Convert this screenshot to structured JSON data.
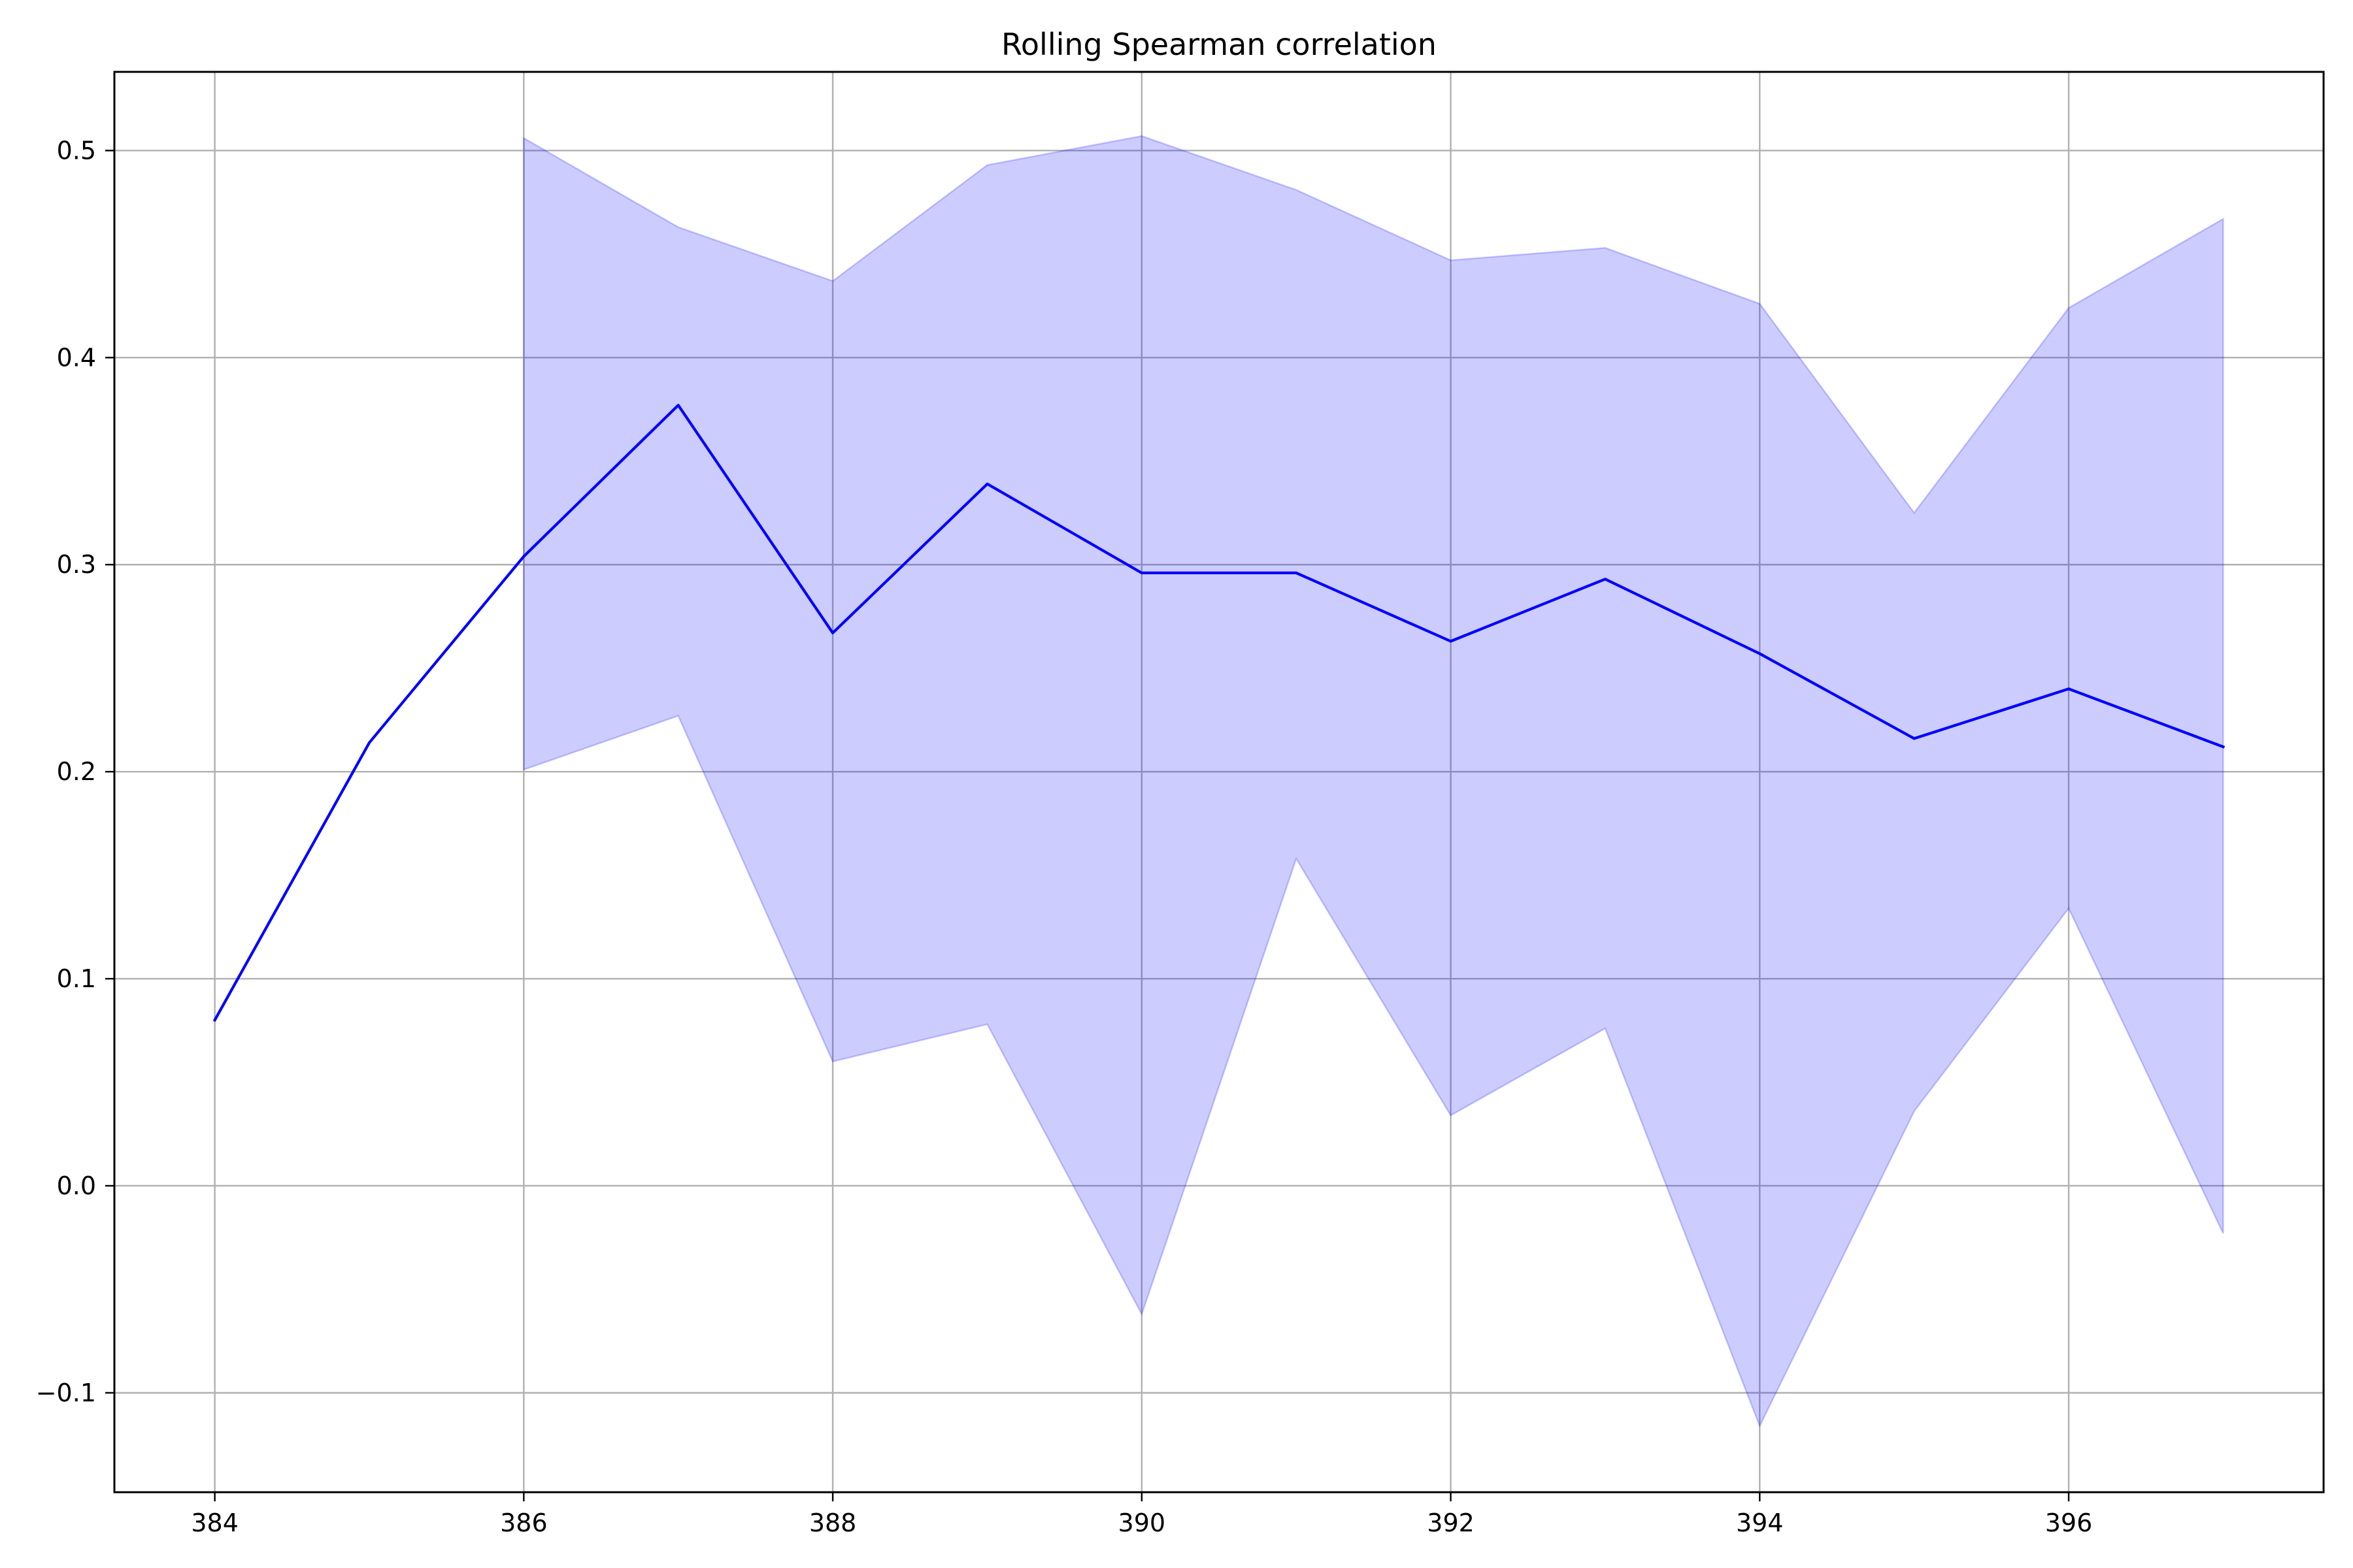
{
  "chart_data": {
    "type": "line",
    "title": "Rolling Spearman correlation",
    "xlabel": "",
    "ylabel": "",
    "xlim": [
      383.35,
      397.65
    ],
    "ylim": [
      -0.148,
      0.538
    ],
    "x_ticks": [
      384,
      386,
      388,
      390,
      392,
      394,
      396
    ],
    "x_tick_labels": [
      "384",
      "386",
      "388",
      "390",
      "392",
      "394",
      "396"
    ],
    "y_ticks": [
      -0.1,
      0.0,
      0.1,
      0.2,
      0.3,
      0.4,
      0.5
    ],
    "y_tick_labels": [
      "−0.1",
      "0.0",
      "0.1",
      "0.2",
      "0.3",
      "0.4",
      "0.5"
    ],
    "grid": true,
    "legend": "none",
    "series": [
      {
        "color": "#0000ff",
        "x": [
          384,
          385,
          386,
          387,
          388,
          389,
          390,
          391,
          392,
          393,
          394,
          395,
          396,
          397
        ],
        "values": [
          0.08,
          0.214,
          0.304,
          0.377,
          0.267,
          0.339,
          0.296,
          0.296,
          0.263,
          0.293,
          0.257,
          0.216,
          0.24,
          0.212
        ]
      }
    ],
    "band": {
      "color": "#0000ff",
      "opacity": 0.2,
      "x": [
        386,
        387,
        388,
        389,
        390,
        391,
        392,
        393,
        394,
        395,
        396,
        397
      ],
      "upper": [
        0.506,
        0.463,
        0.437,
        0.493,
        0.507,
        0.481,
        0.447,
        0.453,
        0.426,
        0.325,
        0.424,
        0.467
      ],
      "lower": [
        0.201,
        0.227,
        0.06,
        0.078,
        -0.062,
        0.158,
        0.034,
        0.076,
        -0.116,
        0.036,
        0.134,
        -0.023
      ]
    }
  }
}
